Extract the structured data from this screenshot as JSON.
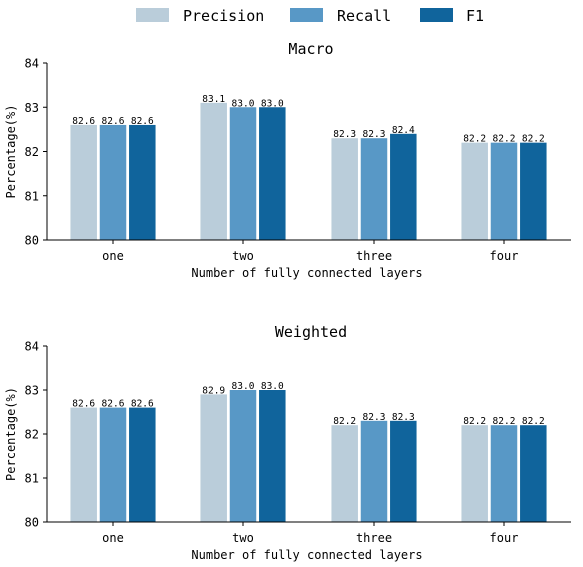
{
  "legend": {
    "items": [
      {
        "label": "Precision",
        "color": "#bacdda"
      },
      {
        "label": "Recall",
        "color": "#5898c6"
      },
      {
        "label": "F1",
        "color": "#10649c"
      }
    ],
    "placement": "top-center"
  },
  "chart_data": [
    {
      "type": "bar",
      "title": "Macro",
      "xlabel": "Number of fully connected layers",
      "ylabel": "Percentage(%)",
      "ylim": [
        80,
        84
      ],
      "yticks": [
        "80",
        "81",
        "82",
        "83",
        "84"
      ],
      "grid": false,
      "categories": [
        "one",
        "two",
        "three",
        "four"
      ],
      "series": [
        {
          "name": "Precision",
          "color": "#bacdda",
          "values": [
            82.6,
            83.1,
            82.3,
            82.2
          ],
          "labels": [
            "82.6",
            "83.1",
            "82.3",
            "82.2"
          ]
        },
        {
          "name": "Recall",
          "color": "#5898c6",
          "values": [
            82.6,
            83.0,
            82.3,
            82.2
          ],
          "labels": [
            "82.6",
            "83.0",
            "82.3",
            "82.2"
          ]
        },
        {
          "name": "F1",
          "color": "#10649c",
          "values": [
            82.6,
            83.0,
            82.4,
            82.2
          ],
          "labels": [
            "82.6",
            "83.0",
            "82.4",
            "82.2"
          ]
        }
      ]
    },
    {
      "type": "bar",
      "title": "Weighted",
      "xlabel": "Number of fully connected layers",
      "ylabel": "Percentage(%)",
      "ylim": [
        80,
        84
      ],
      "yticks": [
        "80",
        "81",
        "82",
        "83",
        "84"
      ],
      "grid": false,
      "categories": [
        "one",
        "two",
        "three",
        "four"
      ],
      "series": [
        {
          "name": "Precision",
          "color": "#bacdda",
          "values": [
            82.6,
            82.9,
            82.2,
            82.2
          ],
          "labels": [
            "82.6",
            "82.9",
            "82.2",
            "82.2"
          ]
        },
        {
          "name": "Recall",
          "color": "#5898c6",
          "values": [
            82.6,
            83.0,
            82.3,
            82.2
          ],
          "labels": [
            "82.6",
            "83.0",
            "82.3",
            "82.2"
          ]
        },
        {
          "name": "F1",
          "color": "#10649c",
          "values": [
            82.6,
            83.0,
            82.3,
            82.2
          ],
          "labels": [
            "82.6",
            "83.0",
            "82.3",
            "82.2"
          ]
        }
      ]
    }
  ]
}
